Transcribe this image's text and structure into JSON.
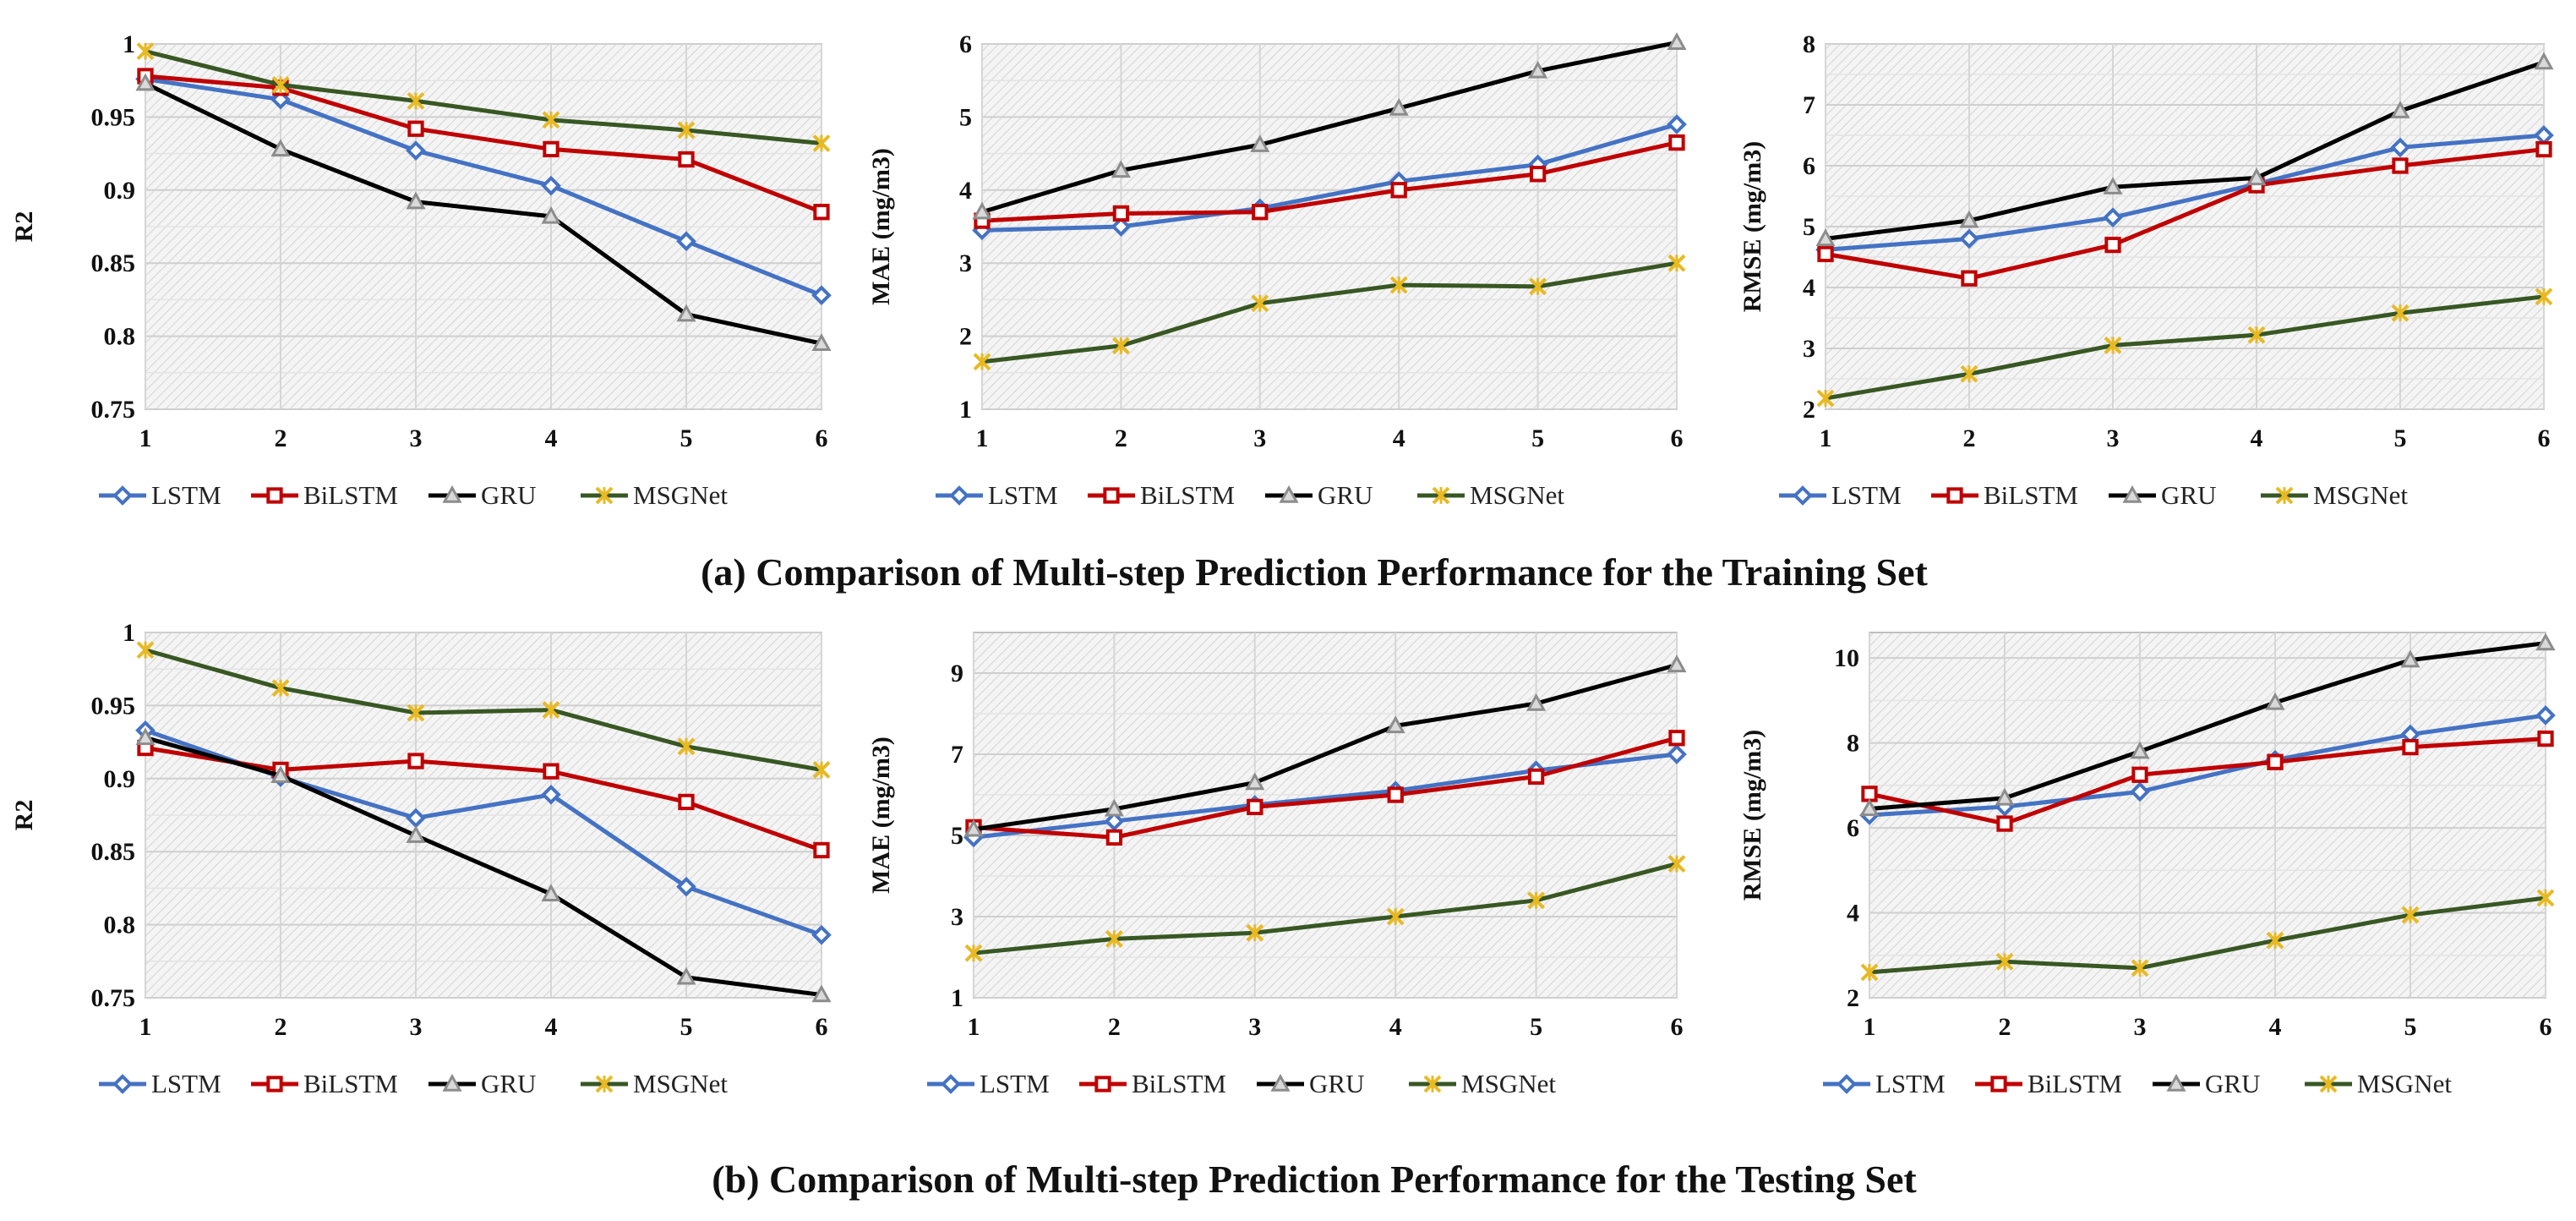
{
  "captions": {
    "training": "(a) Comparison of Multi-step Prediction Performance for the Training Set",
    "testing": "(b) Comparison of Multi-step Prediction Performance for the Testing Set"
  },
  "series_styles": [
    {
      "name": "LSTM",
      "color": "#4472C4",
      "marker": "diamond"
    },
    {
      "name": "BiLSTM",
      "color": "#C00000",
      "marker": "square"
    },
    {
      "name": "GRU",
      "color": "#000000",
      "marker": "triangle"
    },
    {
      "name": "MSGNet",
      "color": "#385723",
      "marker": "star"
    }
  ],
  "chart_data": [
    {
      "type": "line",
      "title": "",
      "xlabel": "",
      "ylabel": "R2",
      "categories": [
        "1",
        "2",
        "3",
        "4",
        "5",
        "6"
      ],
      "ylim": [
        0.75,
        1
      ],
      "yticks": [
        "0.75",
        "0.8",
        "0.85",
        "0.9",
        "0.95",
        "1"
      ],
      "grid": true,
      "legend": "bottom",
      "series": [
        {
          "name": "LSTM",
          "values": [
            0.976,
            0.962,
            0.927,
            0.903,
            0.865,
            0.828
          ]
        },
        {
          "name": "BiLSTM",
          "values": [
            0.978,
            0.97,
            0.942,
            0.928,
            0.921,
            0.885
          ]
        },
        {
          "name": "GRU",
          "values": [
            0.973,
            0.928,
            0.892,
            0.882,
            0.815,
            0.795
          ]
        },
        {
          "name": "MSGNet",
          "values": [
            0.995,
            0.972,
            0.961,
            0.948,
            0.941,
            0.932
          ]
        }
      ]
    },
    {
      "type": "line",
      "title": "",
      "xlabel": "",
      "ylabel": "MAE  (mg/m3)",
      "categories": [
        "1",
        "2",
        "3",
        "4",
        "5",
        "6"
      ],
      "ylim": [
        1,
        6
      ],
      "yticks": [
        "1",
        "2",
        "3",
        "4",
        "5",
        "6"
      ],
      "grid": true,
      "legend": "bottom",
      "series": [
        {
          "name": "LSTM",
          "values": [
            3.45,
            3.5,
            3.75,
            4.12,
            4.35,
            4.9
          ]
        },
        {
          "name": "BiLSTM",
          "values": [
            3.58,
            3.68,
            3.7,
            4.0,
            4.22,
            4.65
          ]
        },
        {
          "name": "GRU",
          "values": [
            3.7,
            4.27,
            4.62,
            5.12,
            5.63,
            6.02
          ]
        },
        {
          "name": "MSGNet",
          "values": [
            1.65,
            1.87,
            2.45,
            2.7,
            2.68,
            3.0
          ]
        }
      ]
    },
    {
      "type": "line",
      "title": "",
      "xlabel": "",
      "ylabel": "RMSE  (mg/m3)",
      "categories": [
        "1",
        "2",
        "3",
        "4",
        "5",
        "6"
      ],
      "ylim": [
        2,
        8
      ],
      "yticks": [
        "2",
        "3",
        "4",
        "5",
        "6",
        "7",
        "8"
      ],
      "grid": true,
      "legend": "bottom",
      "series": [
        {
          "name": "LSTM",
          "values": [
            4.62,
            4.8,
            5.15,
            5.7,
            6.3,
            6.5
          ]
        },
        {
          "name": "BiLSTM",
          "values": [
            4.55,
            4.15,
            4.7,
            5.68,
            6.0,
            6.27
          ]
        },
        {
          "name": "GRU",
          "values": [
            4.8,
            5.1,
            5.65,
            5.8,
            6.9,
            7.7
          ]
        },
        {
          "name": "MSGNet",
          "values": [
            2.18,
            2.58,
            3.05,
            3.22,
            3.58,
            3.85
          ]
        }
      ]
    },
    {
      "type": "line",
      "title": "",
      "xlabel": "",
      "ylabel": "R2",
      "categories": [
        "1",
        "2",
        "3",
        "4",
        "5",
        "6"
      ],
      "ylim": [
        0.75,
        1
      ],
      "yticks": [
        "0.75",
        "0.8",
        "0.85",
        "0.9",
        "0.95",
        "1"
      ],
      "grid": true,
      "legend": "bottom",
      "series": [
        {
          "name": "LSTM",
          "values": [
            0.933,
            0.901,
            0.873,
            0.889,
            0.826,
            0.793
          ]
        },
        {
          "name": "BiLSTM",
          "values": [
            0.921,
            0.906,
            0.912,
            0.905,
            0.884,
            0.851
          ]
        },
        {
          "name": "GRU",
          "values": [
            0.928,
            0.902,
            0.861,
            0.821,
            0.764,
            0.752
          ]
        },
        {
          "name": "MSGNet",
          "values": [
            0.988,
            0.962,
            0.945,
            0.947,
            0.922,
            0.906
          ]
        }
      ]
    },
    {
      "type": "line",
      "title": "",
      "xlabel": "",
      "ylabel": "MAE  (mg/m3)",
      "categories": [
        "1",
        "2",
        "3",
        "4",
        "5",
        "6"
      ],
      "ylim": [
        1,
        10
      ],
      "yticks": [
        "1",
        "3",
        "5",
        "7",
        "9"
      ],
      "grid": true,
      "legend": "bottom",
      "series": [
        {
          "name": "LSTM",
          "values": [
            4.95,
            5.35,
            5.75,
            6.1,
            6.6,
            7.0
          ]
        },
        {
          "name": "BiLSTM",
          "values": [
            5.2,
            4.95,
            5.7,
            6.0,
            6.45,
            7.4
          ]
        },
        {
          "name": "GRU",
          "values": [
            5.15,
            5.65,
            6.3,
            7.7,
            8.25,
            9.2
          ]
        },
        {
          "name": "MSGNet",
          "values": [
            2.1,
            2.45,
            2.6,
            3.0,
            3.4,
            4.3
          ]
        }
      ]
    },
    {
      "type": "line",
      "title": "",
      "xlabel": "",
      "ylabel": "RMSE  (mg/m3)",
      "categories": [
        "1",
        "2",
        "3",
        "4",
        "5",
        "6"
      ],
      "ylim": [
        2,
        10.6
      ],
      "yticks": [
        "2",
        "4",
        "6",
        "8",
        "10"
      ],
      "grid": true,
      "legend": "bottom",
      "series": [
        {
          "name": "LSTM",
          "values": [
            6.3,
            6.5,
            6.85,
            7.6,
            8.2,
            8.65
          ]
        },
        {
          "name": "BiLSTM",
          "values": [
            6.8,
            6.1,
            7.25,
            7.55,
            7.9,
            8.1
          ]
        },
        {
          "name": "GRU",
          "values": [
            6.45,
            6.7,
            7.8,
            8.95,
            9.95,
            10.35
          ]
        },
        {
          "name": "MSGNet",
          "values": [
            2.6,
            2.85,
            2.7,
            3.35,
            3.95,
            4.35
          ]
        }
      ]
    }
  ]
}
